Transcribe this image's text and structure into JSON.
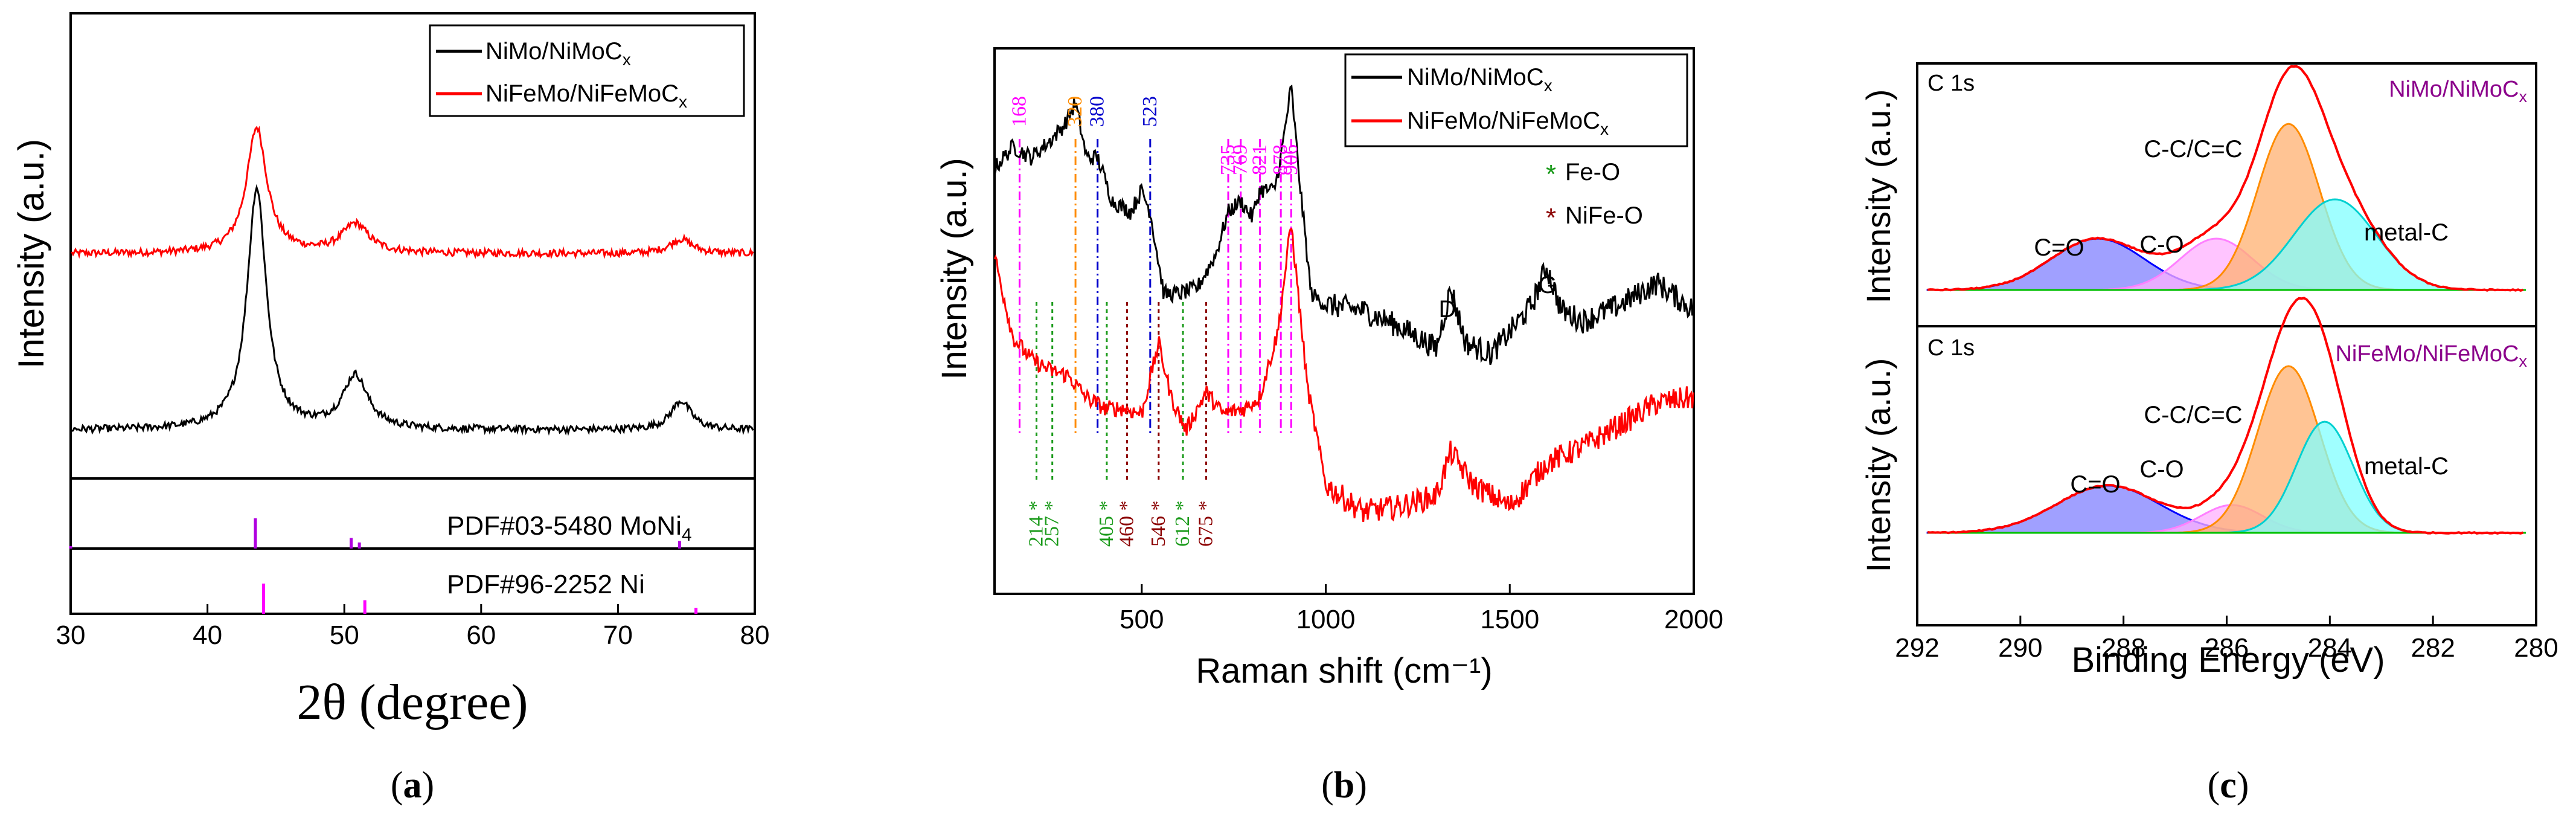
{
  "figure": {
    "caption_labels": [
      "(a)",
      "(b)",
      "(c)"
    ]
  },
  "chart_data": [
    {
      "id": "a",
      "type": "line",
      "title": "",
      "xlabel": "2θ (degree)",
      "ylabel": "Intensity (a.u.)",
      "xlim": [
        30,
        80
      ],
      "xticks": [
        30,
        40,
        50,
        60,
        70,
        80
      ],
      "grid": false,
      "legend": {
        "position": "top-right",
        "entries": [
          {
            "label": "NiMo/NiMoC",
            "sub": "x",
            "color": "#000000"
          },
          {
            "label": "NiFeMo/NiFeMoC",
            "sub": "x",
            "color": "#ff0000"
          }
        ]
      },
      "series": [
        {
          "name": "NiFeMo/NiFeMoCx",
          "color": "#ff0000",
          "baseline": 0.73,
          "peaks": [
            {
              "x": 43.6,
              "h": 0.52,
              "w": 0.9
            },
            {
              "x": 50.8,
              "h": 0.12,
              "w": 1.2
            },
            {
              "x": 74.6,
              "h": 0.06,
              "w": 1.0
            }
          ]
        },
        {
          "name": "NiMo/NiMoCx",
          "color": "#000000",
          "baseline": 0.0,
          "peaks": [
            {
              "x": 43.6,
              "h": 1.0,
              "w": 0.85
            },
            {
              "x": 50.8,
              "h": 0.22,
              "w": 1.1
            },
            {
              "x": 74.6,
              "h": 0.12,
              "w": 0.9
            }
          ]
        }
      ],
      "reference_panels": [
        {
          "label": "PDF#03-5480 MoNi",
          "sub": "4",
          "color": "#b000e0",
          "lines": [
            {
              "x": 43.5,
              "h": 1.0
            },
            {
              "x": 50.5,
              "h": 0.35
            },
            {
              "x": 51.1,
              "h": 0.2
            },
            {
              "x": 74.5,
              "h": 0.25
            },
            {
              "x": 30.0,
              "h": 0.08
            }
          ]
        },
        {
          "label": "PDF#96-2252 Ni",
          "sub": "",
          "color": "#ff00ff",
          "lines": [
            {
              "x": 44.1,
              "h": 1.0
            },
            {
              "x": 51.5,
              "h": 0.45
            },
            {
              "x": 75.7,
              "h": 0.2
            }
          ]
        }
      ]
    },
    {
      "id": "b",
      "type": "line",
      "title": "",
      "xlabel": "Raman shift (cm⁻¹)",
      "ylabel": "Intensity (a.u.)",
      "xlim": [
        100,
        2000
      ],
      "xticks": [
        500,
        1000,
        1500,
        2000
      ],
      "grid": false,
      "legend": {
        "position": "top-right",
        "entries": [
          {
            "label": "NiMo/NiMoC",
            "sub": "x",
            "color": "#000000"
          },
          {
            "label": "NiFeMo/NiFeMoC",
            "sub": "x",
            "color": "#ff0000"
          }
        ]
      },
      "marker_legend": [
        {
          "symbol": "*",
          "label": "Fe-O",
          "color": "#1a9a1a"
        },
        {
          "symbol": "*",
          "label": "NiFe-O",
          "color": "#8b0000"
        }
      ],
      "series": [
        {
          "name": "NiMo/NiMoCx",
          "color": "#000000",
          "profile": [
            [
              100,
              0.78
            ],
            [
              150,
              0.82
            ],
            [
              200,
              0.8
            ],
            [
              250,
              0.83
            ],
            [
              290,
              0.86
            ],
            [
              320,
              0.9
            ],
            [
              350,
              0.8
            ],
            [
              380,
              0.8
            ],
            [
              420,
              0.72
            ],
            [
              470,
              0.7
            ],
            [
              500,
              0.74
            ],
            [
              523,
              0.7
            ],
            [
              560,
              0.55
            ],
            [
              600,
              0.55
            ],
            [
              650,
              0.56
            ],
            [
              700,
              0.62
            ],
            [
              735,
              0.7
            ],
            [
              769,
              0.72
            ],
            [
              800,
              0.69
            ],
            [
              821,
              0.74
            ],
            [
              860,
              0.74
            ],
            [
              878,
              0.8
            ],
            [
              906,
              0.93
            ],
            [
              930,
              0.75
            ],
            [
              960,
              0.55
            ],
            [
              1000,
              0.53
            ],
            [
              1100,
              0.52
            ],
            [
              1200,
              0.49
            ],
            [
              1300,
              0.45
            ],
            [
              1340,
              0.56
            ],
            [
              1380,
              0.46
            ],
            [
              1450,
              0.44
            ],
            [
              1500,
              0.48
            ],
            [
              1560,
              0.53
            ],
            [
              1600,
              0.6
            ],
            [
              1640,
              0.52
            ],
            [
              1700,
              0.5
            ],
            [
              1800,
              0.53
            ],
            [
              1900,
              0.57
            ],
            [
              2000,
              0.52
            ]
          ]
        },
        {
          "name": "NiFeMo/NiFeMoCx",
          "color": "#ff0000",
          "profile": [
            [
              100,
              0.62
            ],
            [
              150,
              0.47
            ],
            [
              200,
              0.43
            ],
            [
              250,
              0.41
            ],
            [
              300,
              0.4
            ],
            [
              350,
              0.36
            ],
            [
              400,
              0.34
            ],
            [
              450,
              0.34
            ],
            [
              500,
              0.33
            ],
            [
              546,
              0.46
            ],
            [
              580,
              0.36
            ],
            [
              620,
              0.3
            ],
            [
              675,
              0.37
            ],
            [
              720,
              0.33
            ],
            [
              780,
              0.34
            ],
            [
              820,
              0.36
            ],
            [
              870,
              0.48
            ],
            [
              906,
              0.68
            ],
            [
              950,
              0.38
            ],
            [
              1000,
              0.2
            ],
            [
              1100,
              0.15
            ],
            [
              1200,
              0.16
            ],
            [
              1300,
              0.18
            ],
            [
              1340,
              0.26
            ],
            [
              1400,
              0.2
            ],
            [
              1500,
              0.16
            ],
            [
              1600,
              0.24
            ],
            [
              1700,
              0.27
            ],
            [
              1800,
              0.31
            ],
            [
              1900,
              0.35
            ],
            [
              2000,
              0.36
            ]
          ]
        }
      ],
      "annotations": [
        {
          "x": 168,
          "text": "168",
          "color": "#ff00ff",
          "pos": "top"
        },
        {
          "x": 320,
          "text": "320",
          "color": "#ff8c00",
          "pos": "top"
        },
        {
          "x": 380,
          "text": "380",
          "color": "#0000cc",
          "pos": "top"
        },
        {
          "x": 523,
          "text": "523",
          "color": "#0000cc",
          "pos": "top"
        },
        {
          "x": 735,
          "text": "735",
          "color": "#ff00ff",
          "pos": "top"
        },
        {
          "x": 769,
          "text": "769",
          "color": "#ff00ff",
          "pos": "top"
        },
        {
          "x": 821,
          "text": "821",
          "color": "#ff00ff",
          "pos": "top"
        },
        {
          "x": 878,
          "text": "878",
          "color": "#ff00ff",
          "pos": "top"
        },
        {
          "x": 906,
          "text": "906",
          "color": "#ff00ff",
          "pos": "top"
        },
        {
          "x": 214,
          "text": "214",
          "color": "#1a9a1a",
          "pos": "bottom"
        },
        {
          "x": 257,
          "text": "257",
          "color": "#1a9a1a",
          "pos": "bottom"
        },
        {
          "x": 405,
          "text": "405",
          "color": "#1a9a1a",
          "pos": "bottom"
        },
        {
          "x": 460,
          "text": "460",
          "color": "#8b0000",
          "pos": "bottom"
        },
        {
          "x": 546,
          "text": "546",
          "color": "#8b0000",
          "pos": "bottom"
        },
        {
          "x": 612,
          "text": "612",
          "color": "#1a9a1a",
          "pos": "bottom"
        },
        {
          "x": 675,
          "text": "675",
          "color": "#8b0000",
          "pos": "bottom"
        }
      ],
      "band_labels": [
        {
          "x": 1340,
          "text": "D"
        },
        {
          "x": 1600,
          "text": "G"
        }
      ]
    },
    {
      "id": "c",
      "type": "line",
      "title": "",
      "xlabel": "Binding Energy (eV)",
      "ylabel": "Intensity (a.u.)",
      "xlim": [
        292,
        280
      ],
      "xticks": [
        292,
        290,
        288,
        286,
        284,
        282,
        280
      ],
      "grid": false,
      "subpanels": [
        {
          "label": "C 1s",
          "sample": "NiMo/NiMoC",
          "sample_sub": "x",
          "sample_color": "#8b008b",
          "components": [
            {
              "name": "C=O",
              "center": 288.5,
              "height": 0.17,
              "width": 0.9,
              "color": "#0000ff",
              "fill": "#8080ff"
            },
            {
              "name": "C-O",
              "center": 286.2,
              "height": 0.17,
              "width": 0.7,
              "color": "#ff80ff",
              "fill": "#ffb0ff"
            },
            {
              "name": "C-C/C=C",
              "center": 284.8,
              "height": 0.55,
              "width": 0.6,
              "color": "#ff8c00",
              "fill": "#ffb070"
            },
            {
              "name": "metal-C",
              "center": 283.9,
              "height": 0.3,
              "width": 0.8,
              "color": "#00d0d0",
              "fill": "#80ffff"
            }
          ]
        },
        {
          "label": "C 1s",
          "sample": "NiFeMo/NiFeMoC",
          "sample_sub": "x",
          "sample_color": "#8b008b",
          "components": [
            {
              "name": "C=O",
              "center": 288.3,
              "height": 0.17,
              "width": 1.0,
              "color": "#0000ff",
              "fill": "#8080ff"
            },
            {
              "name": "C-O",
              "center": 285.9,
              "height": 0.1,
              "width": 0.6,
              "color": "#ff80ff",
              "fill": "#ffb0ff"
            },
            {
              "name": "C-C/C=C",
              "center": 284.8,
              "height": 0.6,
              "width": 0.6,
              "color": "#ff8c00",
              "fill": "#ffb070"
            },
            {
              "name": "metal-C",
              "center": 284.1,
              "height": 0.4,
              "width": 0.55,
              "color": "#00d0d0",
              "fill": "#80ffff"
            }
          ]
        }
      ],
      "envelope_color": "#ff0000",
      "background_color": "#00c000"
    }
  ]
}
